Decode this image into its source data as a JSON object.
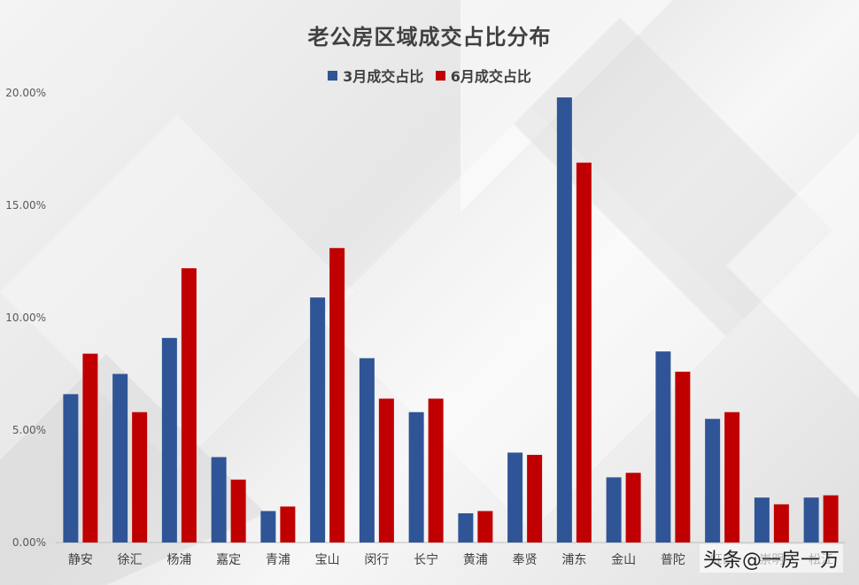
{
  "chart_data": {
    "type": "bar",
    "title": "老公房区域成交占比分布",
    "categories": [
      "静安",
      "徐汇",
      "杨浦",
      "嘉定",
      "青浦",
      "宝山",
      "闵行",
      "长宁",
      "黄浦",
      "奉贤",
      "浦东",
      "金山",
      "普陀",
      "虹口",
      "崇明",
      "松江"
    ],
    "series": [
      {
        "name": "3月成交占比",
        "color": "#2F5597",
        "values": [
          6.6,
          7.5,
          9.1,
          3.8,
          1.4,
          10.9,
          8.2,
          5.8,
          1.3,
          4.0,
          19.8,
          2.9,
          8.5,
          5.5,
          2.0,
          2.0
        ]
      },
      {
        "name": "6月成交占比",
        "color": "#C00000",
        "values": [
          8.4,
          5.8,
          12.2,
          2.8,
          1.6,
          13.1,
          6.4,
          6.4,
          1.4,
          3.9,
          16.9,
          3.1,
          7.6,
          5.8,
          1.7,
          2.1
        ]
      }
    ],
    "ylim": [
      0,
      20
    ],
    "yticks": [
      "0.00%",
      "5.00%",
      "10.00%",
      "15.00%",
      "20.00%"
    ],
    "legend_position": "top",
    "grid": false
  },
  "watermark": "头条@一房一万"
}
